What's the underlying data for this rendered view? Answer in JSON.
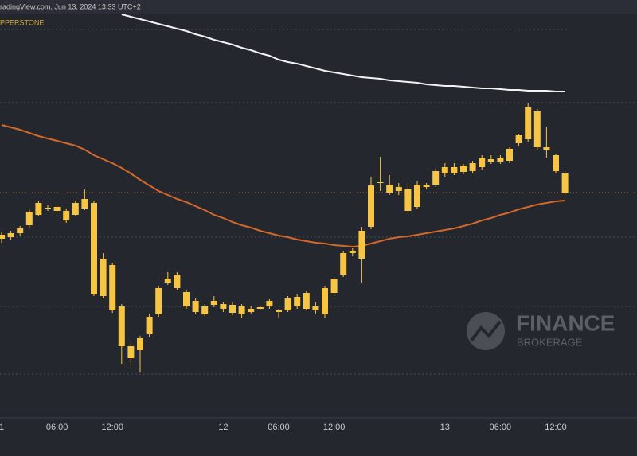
{
  "chart_data": {
    "type": "candlestick",
    "source": "radingView.com, Jun 13, 2024 13:33 UTC+2",
    "symbol": "PPERSTONE",
    "watermark": {
      "title": "FINANCE",
      "subtitle": "BROKERAGE"
    },
    "categories": [
      "1",
      null,
      null,
      null,
      null,
      null,
      "06:00",
      null,
      null,
      null,
      null,
      null,
      "12:00",
      null,
      null,
      null,
      null,
      null,
      null,
      null,
      null,
      null,
      null,
      null,
      "12",
      null,
      null,
      null,
      null,
      null,
      "06:00",
      null,
      null,
      null,
      null,
      null,
      "12:00",
      null,
      null,
      null,
      null,
      null,
      null,
      null,
      null,
      null,
      null,
      null,
      "13",
      null,
      null,
      null,
      null,
      null,
      "06:00",
      null,
      null,
      null,
      null,
      null,
      "12:00",
      null
    ],
    "color": "#f6c544",
    "open": [
      225,
      227,
      232,
      242,
      255,
      263,
      265,
      260,
      255,
      263,
      270,
      200,
      192,
      140,
      90,
      85,
      105,
      130,
      170,
      180,
      158,
      147,
      140,
      147,
      143,
      142,
      140,
      137,
      137,
      140,
      133,
      135,
      140,
      137,
      135,
      130,
      157,
      180,
      207,
      200,
      240,
      295,
      293,
      285,
      287,
      265,
      290,
      293,
      307,
      315,
      309,
      310,
      315,
      325,
      322,
      323,
      345,
      350,
      385,
      340,
      330,
      307
    ],
    "high": [
      233,
      235,
      241,
      263,
      272,
      267,
      268,
      263,
      273,
      287,
      273,
      207,
      195,
      143,
      95,
      103,
      130,
      165,
      183,
      183,
      160,
      150,
      143,
      153,
      145,
      145,
      143,
      141,
      141,
      149,
      137,
      153,
      155,
      159,
      145,
      165,
      177,
      210,
      213,
      240,
      303,
      328,
      305,
      295,
      295,
      297,
      295,
      313,
      320,
      320,
      319,
      323,
      330,
      330,
      330,
      340,
      357,
      395,
      388,
      365,
      332,
      310
    ],
    "low": [
      220,
      224,
      229,
      239,
      253,
      260,
      257,
      245,
      253,
      261,
      153,
      150,
      132,
      67,
      65,
      57,
      102,
      127,
      167,
      160,
      137,
      130,
      128,
      139,
      133,
      129,
      125,
      131,
      135,
      137,
      125,
      133,
      137,
      135,
      130,
      125,
      153,
      177,
      203,
      170,
      237,
      285,
      280,
      280,
      257,
      262,
      287,
      290,
      303,
      305,
      306,
      307,
      312,
      319,
      319,
      320,
      342,
      347,
      337,
      327,
      307,
      280
    ],
    "close": [
      230,
      232,
      238,
      259,
      270,
      264,
      260,
      248,
      270,
      275,
      155,
      153,
      135,
      90,
      75,
      100,
      127,
      163,
      175,
      163,
      140,
      133,
      130,
      142,
      137,
      132,
      130,
      133,
      139,
      147,
      135,
      150,
      152,
      157,
      140,
      163,
      175,
      207,
      210,
      235,
      292,
      296,
      283,
      290,
      260,
      293,
      293,
      310,
      315,
      307,
      317,
      320,
      327,
      322,
      327,
      338,
      355,
      390,
      340,
      337,
      310,
      282
    ],
    "lines": [
      {
        "color": "#f2f2f2",
        "values": [
          null,
          null,
          null,
          null,
          null,
          null,
          null,
          null,
          null,
          null,
          null,
          null,
          null,
          507,
          504,
          501,
          498,
          495,
          492,
          489,
          486,
          482,
          479,
          475,
          472,
          469,
          465,
          462,
          458,
          455,
          450,
          447,
          445,
          442,
          439,
          436,
          434,
          432,
          430,
          428,
          427,
          426,
          424,
          423,
          422,
          421,
          419,
          418,
          417,
          417,
          416,
          415,
          414,
          414,
          413,
          412,
          412,
          411,
          411,
          411,
          410,
          410
        ]
      },
      {
        "color": "#d4682a",
        "values": [
          368,
          365,
          362,
          358,
          354,
          351,
          348,
          345,
          342,
          337,
          330,
          325,
          320,
          314,
          307,
          299,
          292,
          285,
          280,
          275,
          271,
          266,
          261,
          255,
          251,
          246,
          242,
          239,
          235,
          232,
          229,
          227,
          224,
          222,
          220,
          219,
          217,
          216,
          215,
          216,
          219,
          222,
          225,
          227,
          228,
          230,
          232,
          234,
          236,
          238,
          241,
          244,
          248,
          251,
          255,
          258,
          262,
          265,
          268,
          270,
          272,
          273
        ]
      }
    ],
    "ylim": [
      0,
      508
    ]
  }
}
